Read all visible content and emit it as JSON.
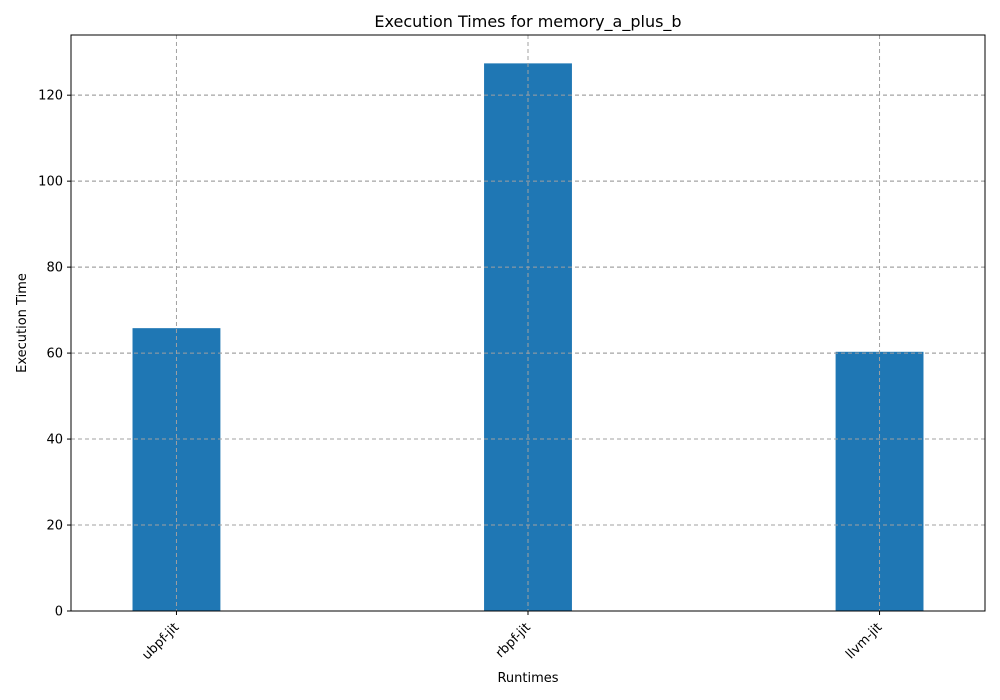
{
  "chart_data": {
    "type": "bar",
    "title": "Execution Times for memory_a_plus_b",
    "xlabel": "Runtimes",
    "ylabel": "Execution Time",
    "categories": [
      "ubpf-jit",
      "rbpf-jit",
      "llvm-jit"
    ],
    "values": [
      65.8,
      127.4,
      60.3
    ],
    "ylim": [
      0,
      134
    ],
    "yticks": [
      0,
      20,
      40,
      60,
      80,
      100,
      120
    ],
    "grid": true,
    "bar_color": "#1f77b4",
    "grid_color": "#a0a0a0"
  }
}
